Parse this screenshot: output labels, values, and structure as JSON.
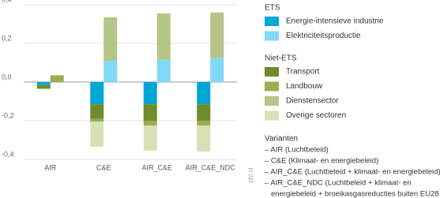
{
  "chart_data": {
    "type": "bar",
    "categories": [
      "AIR",
      "C&E",
      "AIR_C&E",
      "AIR_C&E_NDC"
    ],
    "series": [
      {
        "name": "Energie-intensieve industrie",
        "group": "ETS",
        "color": "#00a6d6",
        "values": [
          -0.015,
          -0.115,
          -0.115,
          -0.115
        ]
      },
      {
        "name": "Elektriciteitsproductie",
        "group": "ETS",
        "color": "#7fd9f7",
        "values": [
          0,
          0.11,
          0.115,
          0.125
        ]
      },
      {
        "name": "Transport",
        "group": "Niet-ETS",
        "color": "#6e8c2a",
        "values": [
          -0.02,
          -0.075,
          -0.085,
          -0.085
        ]
      },
      {
        "name": "Landbouw",
        "group": "Niet-ETS",
        "color": "#9aad52",
        "values": [
          0.035,
          -0.015,
          -0.025,
          -0.025
        ]
      },
      {
        "name": "Dienstensector",
        "group": "Niet-ETS",
        "color": "#b6c585",
        "values": [
          0,
          0.225,
          0.24,
          0.235
        ]
      },
      {
        "name": "Overige sectoren",
        "group": "Niet-ETS",
        "color": "#d8e0b8",
        "values": [
          0,
          -0.13,
          -0.13,
          -0.135
        ]
      }
    ],
    "ylim": [
      -0.4,
      0.4
    ],
    "yticks": [
      {
        "value": -0.4,
        "label": "-0,4"
      },
      {
        "value": -0.2,
        "label": "-0,2"
      },
      {
        "value": 0,
        "label": "0,0"
      },
      {
        "value": 0.2,
        "label": "0,2"
      },
      {
        "value": 0.4,
        "label": "0,4"
      }
    ],
    "grid": true,
    "source": "pbl.nl",
    "notes_title": "Varianten",
    "notes": [
      "– AIR (Luchtbeleid)",
      "– C&E (Klimaat- en energiebeleid)",
      "– AIR_C&E (Luchtbeleid + klimaat- en energiebeleid)",
      "– AIR_C&E_NDC (Luchtbeleid + klimaat- en",
      "energiebeleid + broeikasgasreducties buiten EU28"
    ]
  }
}
